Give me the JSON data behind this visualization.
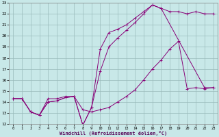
{
  "xlabel": "Windchill (Refroidissement éolien,°C)",
  "xlim": [
    -0.5,
    23.5
  ],
  "ylim": [
    12,
    23
  ],
  "xticks": [
    0,
    1,
    2,
    3,
    4,
    5,
    6,
    7,
    8,
    9,
    10,
    11,
    12,
    13,
    14,
    15,
    16,
    17,
    18,
    19,
    20,
    21,
    22,
    23
  ],
  "yticks": [
    12,
    13,
    14,
    15,
    16,
    17,
    18,
    19,
    20,
    21,
    22,
    23
  ],
  "bg_color": "#c8e8e8",
  "line_color": "#880077",
  "grid_color": "#99bbbb",
  "line1_x": [
    0,
    1,
    2,
    3,
    4,
    5,
    6,
    7,
    8,
    9,
    10,
    11,
    12,
    13,
    14,
    15,
    16,
    17,
    18,
    19,
    20,
    21,
    22,
    23
  ],
  "line1_y": [
    14.3,
    14.3,
    13.1,
    12.8,
    14.3,
    14.3,
    14.5,
    14.5,
    13.3,
    13.1,
    13.3,
    13.5,
    14.0,
    14.5,
    15.1,
    16.0,
    17.0,
    17.8,
    18.8,
    19.5,
    15.2,
    15.3,
    15.2,
    15.3
  ],
  "line2_x": [
    0,
    1,
    2,
    3,
    4,
    5,
    6,
    7,
    8,
    9,
    10,
    11,
    12,
    13,
    14,
    15,
    16,
    17,
    22,
    23
  ],
  "line2_y": [
    14.3,
    14.3,
    13.1,
    12.8,
    14.0,
    14.1,
    14.4,
    14.5,
    11.9,
    13.5,
    18.8,
    20.3,
    20.6,
    21.0,
    21.6,
    22.2,
    22.8,
    22.5,
    15.3,
    15.3
  ],
  "line3_x": [
    0,
    1,
    2,
    3,
    4,
    5,
    6,
    7,
    8,
    9,
    10,
    11,
    12,
    13,
    14,
    15,
    16,
    17,
    18,
    19,
    20,
    21,
    22,
    23
  ],
  "line3_y": [
    14.3,
    14.3,
    13.1,
    12.8,
    14.0,
    14.1,
    14.4,
    14.5,
    11.9,
    13.5,
    16.8,
    19.0,
    19.8,
    20.5,
    21.2,
    22.0,
    22.8,
    22.5,
    22.2,
    22.2,
    22.0,
    22.2,
    22.0,
    22.0
  ]
}
